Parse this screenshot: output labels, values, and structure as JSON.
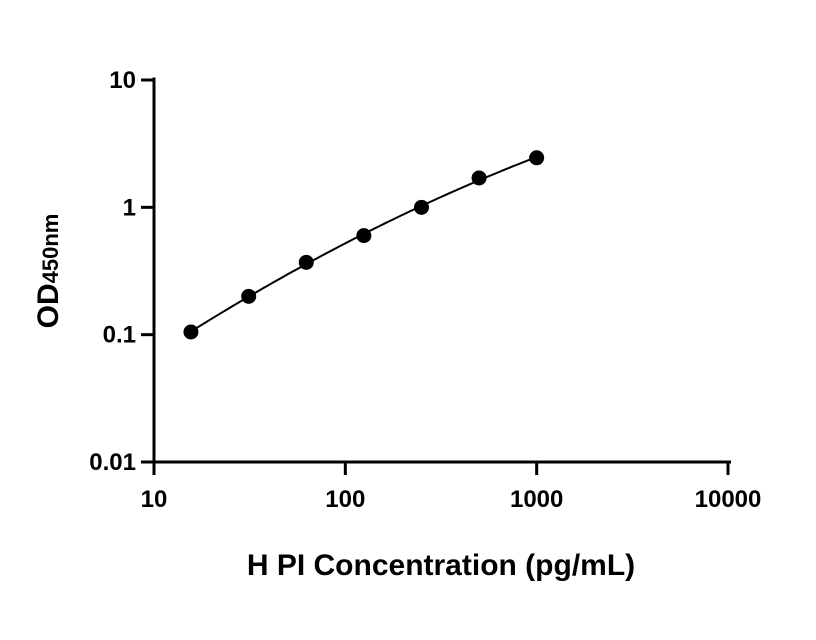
{
  "chart_data": {
    "type": "scatter",
    "title": "",
    "xlabel": "H PI Concentration (pg/mL)",
    "ylabel": "OD",
    "ylabel_subscript": "450nm",
    "x_scale": "log",
    "y_scale": "log",
    "xlim": [
      10,
      10000
    ],
    "ylim": [
      0.01,
      10
    ],
    "x_ticks": [
      10,
      100,
      1000,
      10000
    ],
    "x_tick_labels": [
      "10",
      "100",
      "1000",
      "10000"
    ],
    "y_ticks": [
      0.01,
      0.1,
      1,
      10
    ],
    "y_tick_labels": [
      "0.01",
      "0.1",
      "1",
      "10"
    ],
    "grid": false,
    "legend": "none",
    "series": [
      {
        "x": [
          15.6,
          31.25,
          62.5,
          125,
          250,
          500,
          1000
        ],
        "y": [
          0.105,
          0.2,
          0.37,
          0.6,
          1.0,
          1.7,
          2.45
        ]
      }
    ],
    "fit_curve": true,
    "colors": {
      "points": "#000000",
      "line": "#000000",
      "axis": "#000000"
    }
  }
}
